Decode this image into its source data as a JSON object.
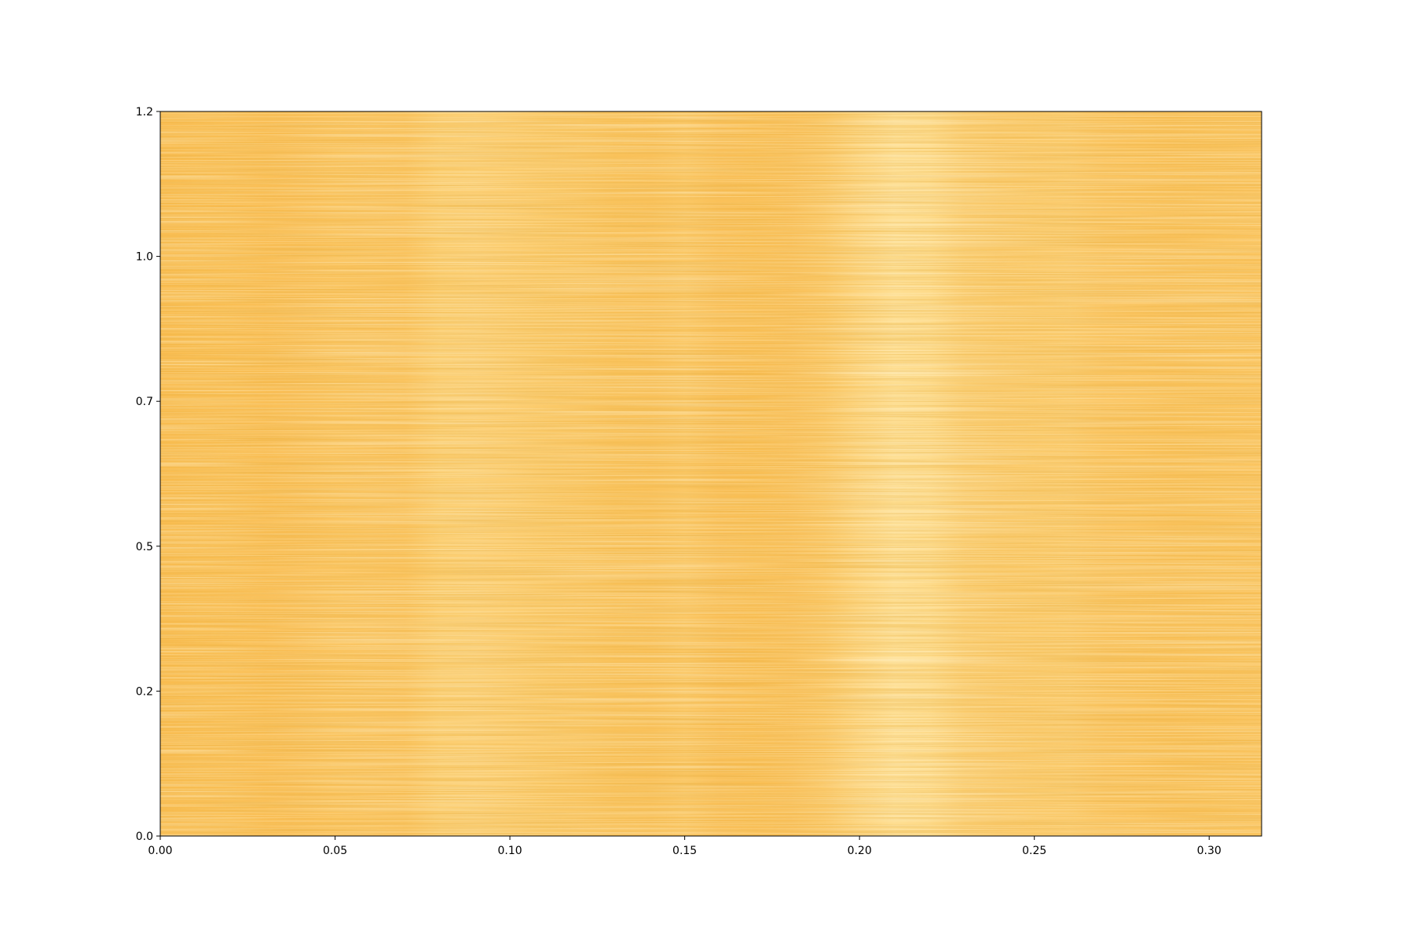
{
  "chart_data": {
    "type": "heatmap",
    "title": "",
    "xlabel": "",
    "ylabel": "",
    "xlim": [
      0.0,
      0.315
    ],
    "ylim": [
      0.0,
      1.2
    ],
    "x_ticks": [
      {
        "value": 0.0,
        "label": "0.00"
      },
      {
        "value": 0.05,
        "label": "0.05"
      },
      {
        "value": 0.1,
        "label": "0.10"
      },
      {
        "value": 0.15,
        "label": "0.15"
      },
      {
        "value": 0.2,
        "label": "0.20"
      },
      {
        "value": 0.25,
        "label": "0.25"
      },
      {
        "value": 0.3,
        "label": "0.30"
      }
    ],
    "y_ticks": [
      {
        "value": 0.0,
        "label": "0.0"
      },
      {
        "value": 0.24,
        "label": "0.2"
      },
      {
        "value": 0.48,
        "label": "0.5"
      },
      {
        "value": 0.72,
        "label": "0.7"
      },
      {
        "value": 0.96,
        "label": "1.0"
      },
      {
        "value": 1.2,
        "label": "1.2"
      }
    ],
    "colormap": "YlOrBr",
    "color_stops": [
      "#ffe9a8",
      "#fdd57e",
      "#f9b94a",
      "#f0952a"
    ],
    "column_profile": {
      "x": [
        0.0,
        0.01,
        0.02,
        0.03,
        0.04,
        0.05,
        0.06,
        0.07,
        0.08,
        0.09,
        0.1,
        0.11,
        0.12,
        0.13,
        0.14,
        0.15,
        0.16,
        0.17,
        0.18,
        0.19,
        0.2,
        0.21,
        0.22,
        0.23,
        0.24,
        0.25,
        0.26,
        0.27,
        0.28,
        0.29,
        0.3,
        0.315
      ],
      "intensity": [
        0.62,
        0.6,
        0.6,
        0.62,
        0.58,
        0.54,
        0.52,
        0.53,
        0.42,
        0.4,
        0.44,
        0.48,
        0.5,
        0.55,
        0.56,
        0.5,
        0.58,
        0.6,
        0.58,
        0.5,
        0.34,
        0.18,
        0.24,
        0.4,
        0.46,
        0.48,
        0.46,
        0.52,
        0.54,
        0.56,
        0.55,
        0.54
      ]
    }
  }
}
